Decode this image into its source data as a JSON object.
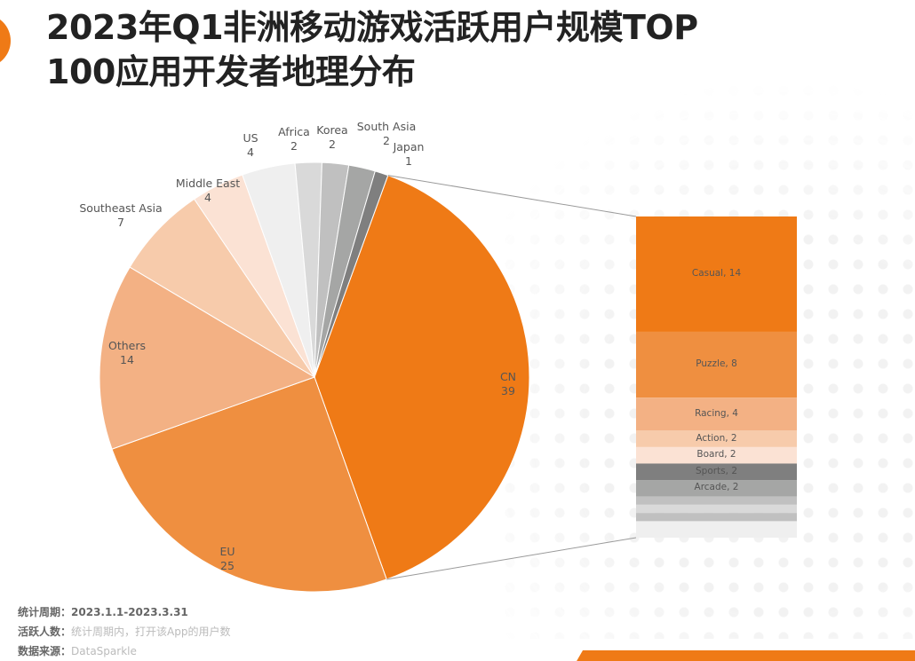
{
  "title_line1": "2023年Q1非洲移动游戏活跃用户规模TOP",
  "title_line2": "100应用开发者地理分布",
  "chart_data": [
    {
      "type": "pie",
      "slices": [
        {
          "label": "CN",
          "value": 39,
          "color": "#ef7a16"
        },
        {
          "label": "EU",
          "value": 25,
          "color": "#ef8f40"
        },
        {
          "label": "Others",
          "value": 14,
          "color": "#f3b184"
        },
        {
          "label": "Southeast Asia",
          "value": 7,
          "color": "#f7cbab"
        },
        {
          "label": "Middle East",
          "value": 4,
          "color": "#fbe2d4"
        },
        {
          "label": "US",
          "value": 4,
          "color": "#efefef"
        },
        {
          "label": "Africa",
          "value": 2,
          "color": "#d9d9d9"
        },
        {
          "label": "Korea",
          "value": 2,
          "color": "#c0c0c0"
        },
        {
          "label": "South Asia",
          "value": 2,
          "color": "#a5a6a5"
        },
        {
          "label": "Japan",
          "value": 1,
          "color": "#7f7f7f"
        }
      ]
    },
    {
      "type": "bar",
      "stacked": true,
      "breakdown_of": "CN",
      "segments": [
        {
          "label": "Casual, 14",
          "value": 14,
          "color": "#ef7a16"
        },
        {
          "label": "Puzzle, 8",
          "value": 8,
          "color": "#ef8f40"
        },
        {
          "label": "Racing, 4",
          "value": 4,
          "color": "#f3b184"
        },
        {
          "label": "Action, 2",
          "value": 2,
          "color": "#f7cbab"
        },
        {
          "label": "Board, 2",
          "value": 2,
          "color": "#fbe2d4"
        },
        {
          "label": "Sports, 2",
          "value": 2,
          "color": "#7f7f7f"
        },
        {
          "label": "Arcade, 2",
          "value": 2,
          "color": "#a5a6a5"
        },
        {
          "label": "",
          "value": 1,
          "color": "#c0c0c0"
        },
        {
          "label": "",
          "value": 1,
          "color": "#d9d9d9"
        },
        {
          "label": "",
          "value": 1,
          "color": "#c0c0c0"
        },
        {
          "label": "",
          "value": 2,
          "color": "#efefef"
        }
      ]
    }
  ],
  "footer": {
    "period_key": "统计周期：",
    "period_val": "2023.1.1-2023.3.31",
    "active_key": "活跃人数：",
    "active_val": "统计周期内，打开该App的用户数",
    "source_key": "数据来源：",
    "source_val": "DataSparkle"
  }
}
